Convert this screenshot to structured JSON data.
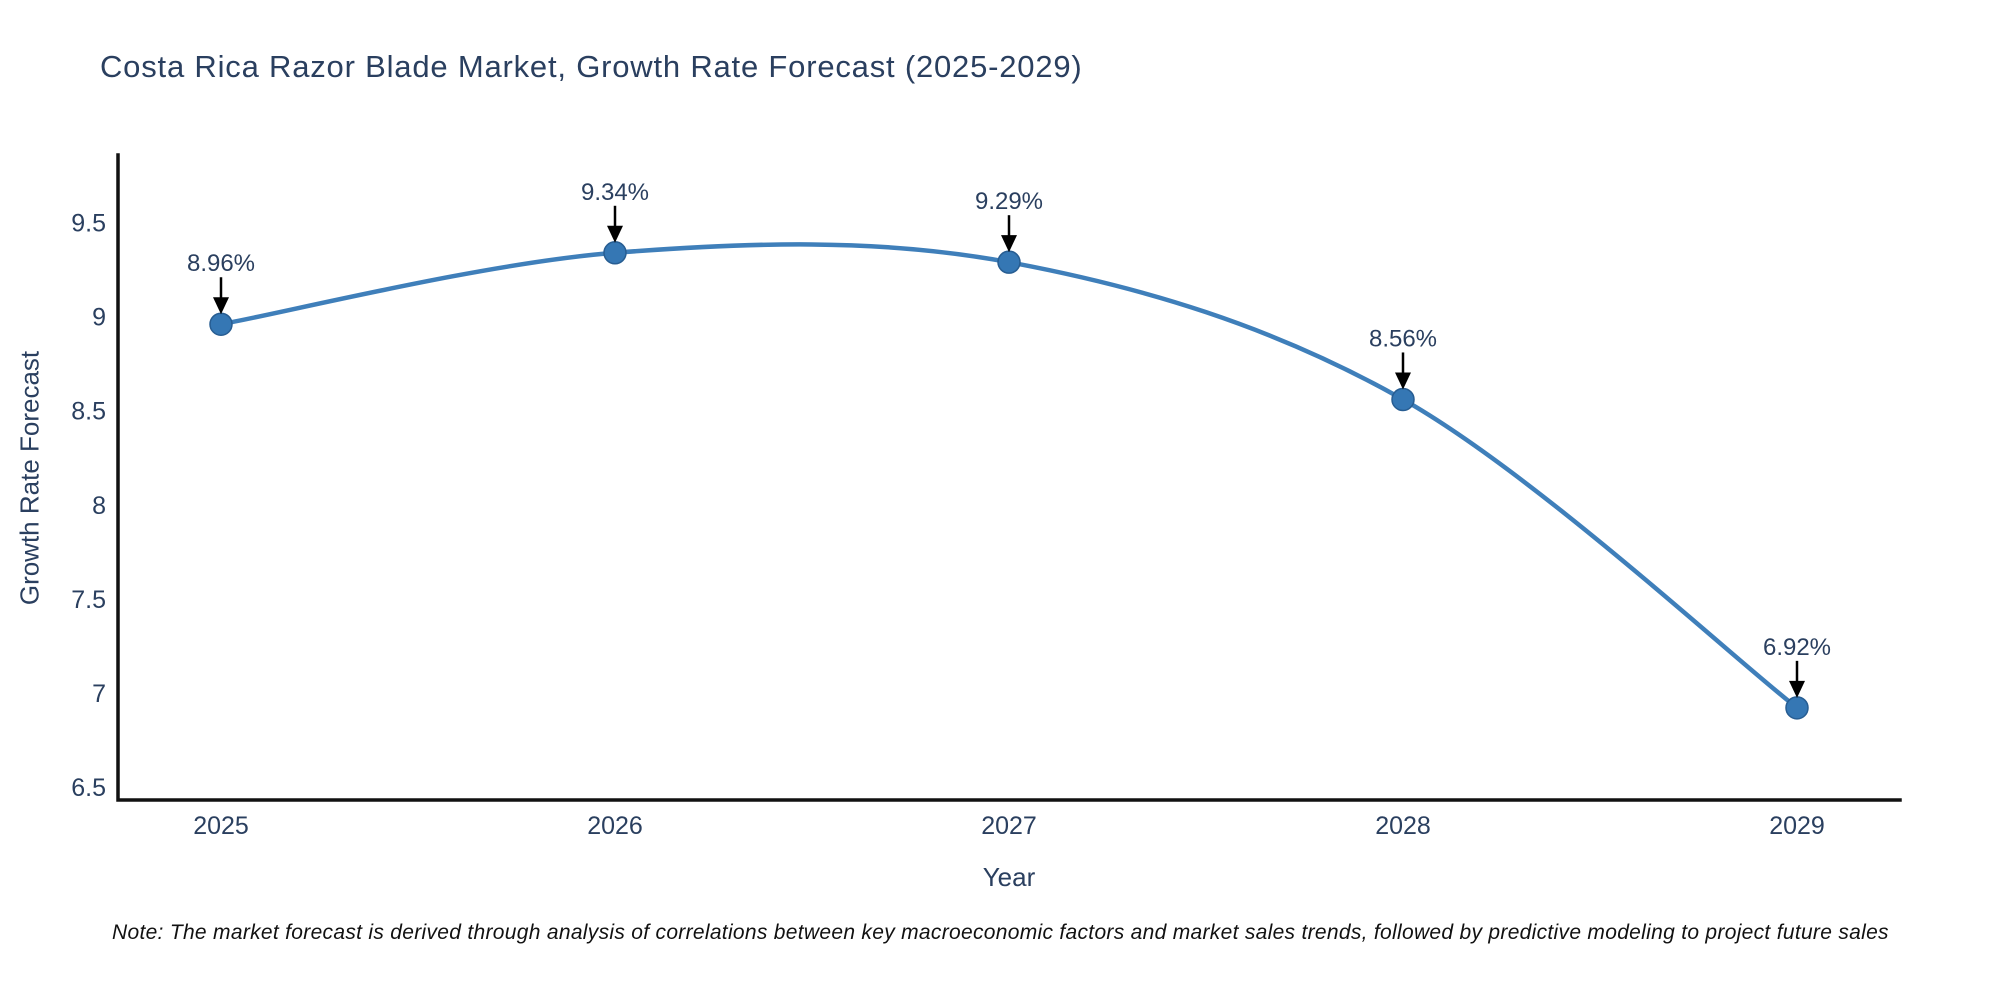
{
  "page": {
    "note": "Note: The market forecast is derived through analysis of correlations between key macroeconomic factors and market sales trends, followed by predictive modeling to project future sales"
  },
  "chart_data": {
    "type": "line",
    "title": "Costa Rica Razor Blade Market, Growth Rate Forecast (2025-2029)",
    "xlabel": "Year",
    "ylabel": "Growth Rate Forecast",
    "x": [
      2025,
      2026,
      2027,
      2028,
      2029
    ],
    "values": [
      8.96,
      9.34,
      9.29,
      8.56,
      6.92
    ],
    "point_labels": [
      "8.96%",
      "9.34%",
      "9.29%",
      "8.56%",
      "6.92%"
    ],
    "x_ticks": [
      "2025",
      "2026",
      "2027",
      "2028",
      "2029"
    ],
    "y_ticks": [
      "6.5",
      "7",
      "7.5",
      "8",
      "8.5",
      "9",
      "9.5"
    ],
    "ylim": [
      6.43,
      9.86
    ],
    "grid": false,
    "legend": "none",
    "line_shape": "spline",
    "annotation_style": "value labels with black down-arrows above each marker",
    "colors": {
      "line": "#3f7fba",
      "marker_fill": "#3577b4",
      "marker_edge": "#275d92",
      "axis": "#111111",
      "text": "#2a3f5f",
      "arrow": "#000000",
      "note": "#111111"
    }
  }
}
